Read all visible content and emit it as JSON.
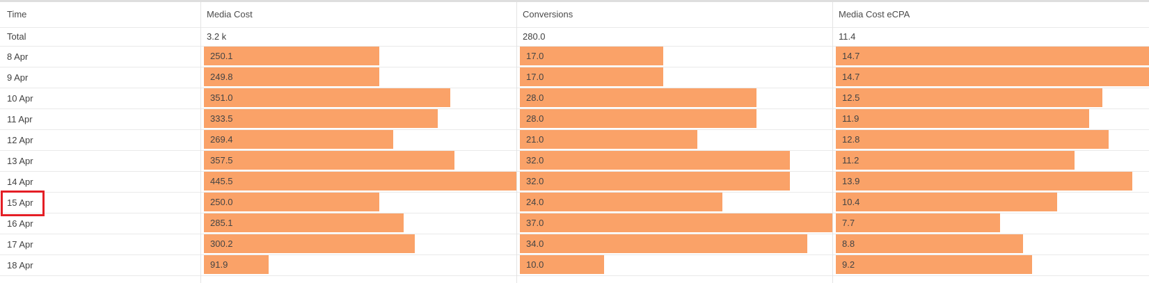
{
  "table": {
    "header": {
      "time": "Time",
      "media_cost": "Media Cost",
      "conversions": "Conversions",
      "ecpa": "Media Cost eCPA"
    },
    "total": {
      "time": "Total",
      "media_cost": "3.2 k",
      "conversions": "280.0",
      "ecpa": "11.4"
    },
    "rows": [
      {
        "time": "8 Apr",
        "media_cost": 250.1,
        "conversions": 17.0,
        "ecpa": 14.7
      },
      {
        "time": "9 Apr",
        "media_cost": 249.8,
        "conversions": 17.0,
        "ecpa": 14.7
      },
      {
        "time": "10 Apr",
        "media_cost": 351.0,
        "conversions": 28.0,
        "ecpa": 12.5
      },
      {
        "time": "11 Apr",
        "media_cost": 333.5,
        "conversions": 28.0,
        "ecpa": 11.9
      },
      {
        "time": "12 Apr",
        "media_cost": 269.4,
        "conversions": 21.0,
        "ecpa": 12.8
      },
      {
        "time": "13 Apr",
        "media_cost": 357.5,
        "conversions": 32.0,
        "ecpa": 11.2
      },
      {
        "time": "14 Apr",
        "media_cost": 445.5,
        "conversions": 32.0,
        "ecpa": 13.9
      },
      {
        "time": "15 Apr",
        "media_cost": 250.0,
        "conversions": 24.0,
        "ecpa": 10.4
      },
      {
        "time": "16 Apr",
        "media_cost": 285.1,
        "conversions": 37.0,
        "ecpa": 7.7
      },
      {
        "time": "17 Apr",
        "media_cost": 300.2,
        "conversions": 34.0,
        "ecpa": 8.8
      },
      {
        "time": "18 Apr",
        "media_cost": 91.9,
        "conversions": 10.0,
        "ecpa": 9.2
      }
    ]
  },
  "chart_data": {
    "type": "bar",
    "orientation": "horizontal",
    "categories": [
      "8 Apr",
      "9 Apr",
      "10 Apr",
      "11 Apr",
      "12 Apr",
      "13 Apr",
      "14 Apr",
      "15 Apr",
      "16 Apr",
      "17 Apr",
      "18 Apr"
    ],
    "series": [
      {
        "name": "Media Cost",
        "values": [
          250.1,
          249.8,
          351.0,
          333.5,
          269.4,
          357.5,
          445.5,
          250.0,
          285.1,
          300.2,
          91.9
        ]
      },
      {
        "name": "Conversions",
        "values": [
          17.0,
          17.0,
          28.0,
          28.0,
          21.0,
          32.0,
          32.0,
          24.0,
          37.0,
          34.0,
          10.0
        ]
      },
      {
        "name": "Media Cost eCPA",
        "values": [
          14.7,
          14.7,
          12.5,
          11.9,
          12.8,
          11.2,
          13.9,
          10.4,
          7.7,
          8.8,
          9.2
        ]
      }
    ],
    "totals": {
      "Media Cost": "3.2 k",
      "Conversions": "280.0",
      "Media Cost eCPA": "11.4"
    },
    "bar_scale": "each column scaled so its max value fills the column width",
    "bar_color": "#faa268"
  },
  "annotation": {
    "highlighted_row": "15 Apr",
    "box_color": "#e41e25"
  },
  "colors": {
    "bar": "#faa268",
    "row_line": "#e9e9e9",
    "divider": "#e3e3e3",
    "top_strip": "#dedede",
    "text": "#3f3f3f"
  }
}
